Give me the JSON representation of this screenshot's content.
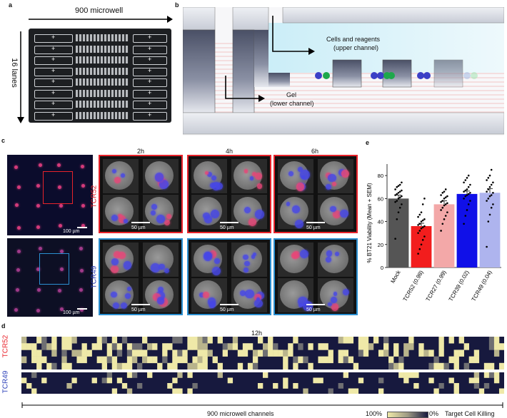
{
  "panel_a": {
    "label": "a",
    "top_text": "900 microwell",
    "side_text": "16 lanes",
    "lane_count": 16,
    "plus_symbol": "+"
  },
  "panel_b": {
    "label": "b",
    "upper_label_line1": "Cells and reagents",
    "upper_label_line2": "(upper channel)",
    "lower_label_line1": "Gel",
    "lower_label_line2": "(lower channel)"
  },
  "panel_c": {
    "label": "c",
    "times": [
      "2h",
      "4h",
      "6h"
    ],
    "row_labels": [
      "TCR52",
      "TCR49"
    ],
    "overview_scale": "100 µm",
    "tile_scale": "50 µm",
    "colors": {
      "tcr52": "#e8232b",
      "tcr49": "#2b8fd1"
    }
  },
  "panel_e": {
    "label": "e",
    "chart_data": {
      "type": "bar",
      "ylabel": "% BT21 Viability (Mean + SEM)",
      "ylim": [
        0,
        90
      ],
      "yticks": [
        0,
        20,
        40,
        60,
        80
      ],
      "categories": [
        "Mock",
        "TCR52 (0.98)",
        "TCR27 (0.99)",
        "TCR39 (0.02)",
        "TCR49 (0.04)"
      ],
      "values": [
        60,
        36,
        55,
        64,
        65
      ],
      "sem": [
        3,
        2.5,
        3,
        2.5,
        3.5
      ],
      "colors": [
        "#555555",
        "#f21d1d",
        "#f3a8a8",
        "#1010e8",
        "#aeb4ee"
      ],
      "points": [
        [
          25,
          42,
          48,
          52,
          55,
          57,
          58,
          60,
          61,
          62,
          63,
          64,
          65,
          66,
          67,
          68,
          70,
          71,
          72,
          74
        ],
        [
          12,
          16,
          20,
          24,
          27,
          30,
          32,
          34,
          35,
          36,
          37,
          38,
          40,
          41,
          42,
          44,
          46,
          48,
          55,
          60
        ],
        [
          32,
          38,
          42,
          45,
          48,
          50,
          52,
          54,
          55,
          56,
          57,
          58,
          60,
          61,
          62,
          63,
          65,
          66,
          68
        ],
        [
          38,
          45,
          50,
          55,
          58,
          60,
          62,
          63,
          64,
          65,
          66,
          67,
          68,
          70,
          72,
          74,
          76,
          78,
          80
        ],
        [
          18,
          40,
          46,
          52,
          55,
          58,
          60,
          62,
          63,
          65,
          66,
          68,
          70,
          72,
          74,
          76,
          78,
          80,
          85
        ]
      ]
    }
  },
  "panel_d": {
    "label": "d",
    "time": "12h",
    "row_labels": [
      "TCR52",
      "TCR49"
    ],
    "bottom_text": "900 microwell channels",
    "legend_high": "100%",
    "legend_low": "0%",
    "legend_title": "Target Cell Killing",
    "colors": {
      "dark": "#17193e",
      "light": "#efe9a8",
      "tcr52": "#e8232b",
      "tcr49": "#2b3fb8"
    }
  }
}
